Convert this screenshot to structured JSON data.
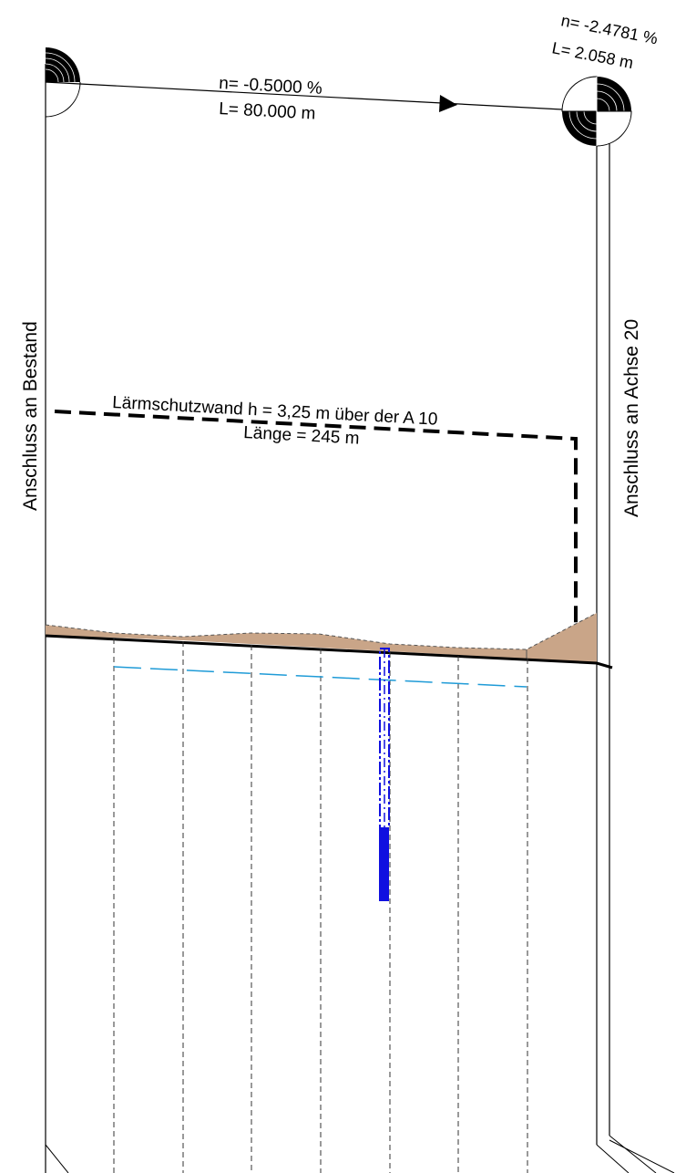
{
  "segment_main": {
    "slope": "n= -0.5000 %",
    "length": "L=  80.000 m"
  },
  "segment_end": {
    "slope": "n= -2.4781 %",
    "length": "L=  2.058 m"
  },
  "left_label": "Anschluss an Bestand",
  "right_label": "Anschluss an Achse 20",
  "noise_wall": {
    "title": "Lärmschutzwand h = 3,25 m über der A 10",
    "length": "Länge = 245 m"
  },
  "colors": {
    "terrain_fill": "#c9a588",
    "groundwater": "#1f9bd7",
    "drill_column": "#1010e0",
    "line": "#000000"
  }
}
